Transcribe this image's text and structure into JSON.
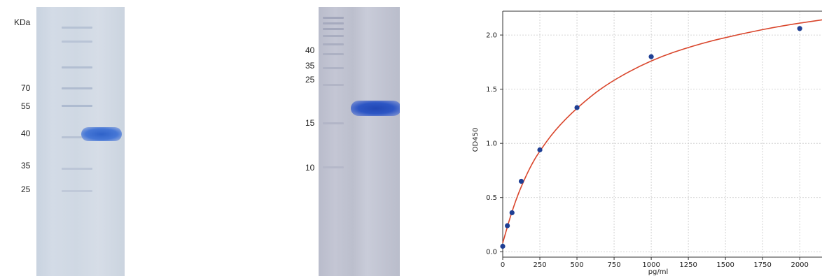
{
  "gel_left": {
    "unit_label": "KDa",
    "markers": [
      "70",
      "55",
      "40",
      "35",
      "25"
    ]
  },
  "gel_middle": {
    "markers": [
      "40",
      "35",
      "25",
      "15",
      "10"
    ]
  },
  "chart_data": {
    "type": "scatter",
    "xlabel": "pg/ml",
    "ylabel": "OD450",
    "xlim": [
      0,
      2150
    ],
    "ylim": [
      -0.05,
      2.22
    ],
    "xticks": [
      0,
      250,
      500,
      750,
      1000,
      1250,
      1500,
      1750,
      2000
    ],
    "yticks": [
      0.0,
      0.5,
      1.0,
      1.5,
      2.0
    ],
    "grid": true,
    "series": [
      {
        "kind": "points",
        "color": "#1f3f94",
        "x": [
          0,
          31.25,
          62.5,
          125,
          250,
          500,
          1000,
          2000
        ],
        "y": [
          0.05,
          0.24,
          0.36,
          0.65,
          0.94,
          1.33,
          1.8,
          2.06
        ]
      },
      {
        "kind": "fit-line",
        "color": "#d9452b",
        "x": [
          0,
          50,
          100,
          150,
          200,
          250,
          350,
          500,
          700,
          1000,
          1300,
          1600,
          1900,
          2150
        ],
        "y": [
          0.08,
          0.32,
          0.52,
          0.68,
          0.82,
          0.93,
          1.12,
          1.33,
          1.55,
          1.77,
          1.91,
          2.01,
          2.09,
          2.14
        ]
      }
    ]
  }
}
